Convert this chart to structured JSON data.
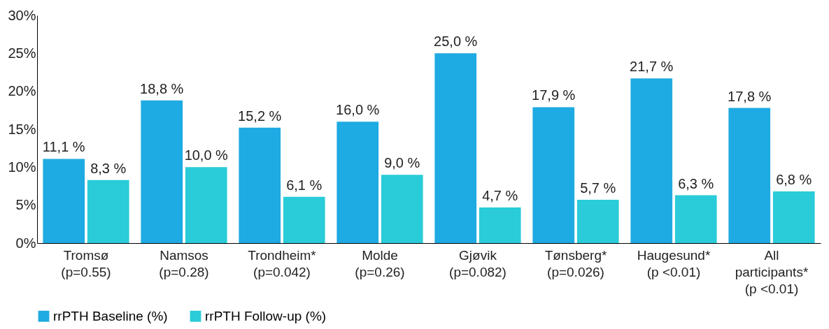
{
  "chart_data": {
    "type": "bar",
    "categories": [
      "Tromsø\n(p=0.55)",
      "Namsos\n(p=0.28)",
      "Trondheim*\n(p=0.042)",
      "Molde\n(p=0.26)",
      "Gjøvik\n(p=0.082)",
      "Tønsberg*\n(p=0.026)",
      "Haugesund*\n(p <0.01)",
      "All\nparticipants*\n(p <0.01)"
    ],
    "series": [
      {
        "name": "rrPTH Baseline (%)",
        "color": "#1eaae2",
        "values": [
          11.1,
          18.8,
          15.2,
          16.0,
          25.0,
          17.9,
          21.7,
          17.8
        ],
        "value_labels": [
          "11,1 %",
          "18,8 %",
          "15,2 %",
          "16,0 %",
          "25,0 %",
          "17,9 %",
          "21,7 %",
          "17,8 %"
        ]
      },
      {
        "name": "rrPTH Follow-up (%)",
        "color": "#29ccd8",
        "values": [
          8.3,
          10.0,
          6.1,
          9.0,
          4.7,
          5.7,
          6.3,
          6.8
        ],
        "value_labels": [
          "8,3 %",
          "10,0 %",
          "6,1 %",
          "9,0 %",
          "4,7 %",
          "5,7 %",
          "6,3 %",
          "6,8 %"
        ]
      }
    ],
    "ylim": [
      0,
      30
    ],
    "yticks": [
      {
        "value": 0,
        "label": "0%"
      },
      {
        "value": 5,
        "label": "5%"
      },
      {
        "value": 10,
        "label": "10%"
      },
      {
        "value": 15,
        "label": "15%"
      },
      {
        "value": 20,
        "label": "20%"
      },
      {
        "value": 25,
        "label": "25%"
      },
      {
        "value": 30,
        "label": "30%"
      }
    ],
    "grid": false,
    "legend": "bottom"
  }
}
